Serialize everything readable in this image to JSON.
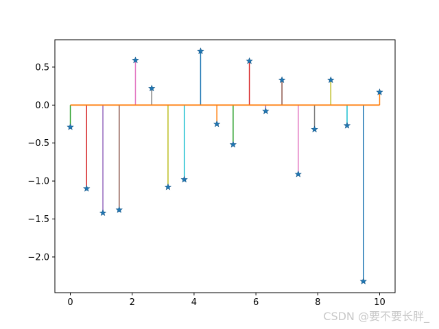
{
  "chart_data": {
    "type": "stem",
    "x": [
      0.0,
      0.526,
      1.053,
      1.579,
      2.105,
      2.632,
      3.158,
      3.684,
      4.211,
      4.737,
      5.263,
      5.789,
      6.316,
      6.842,
      7.368,
      7.895,
      8.421,
      8.947,
      9.474,
      10.0
    ],
    "y": [
      -0.29,
      -1.1,
      -1.42,
      -1.38,
      0.59,
      0.22,
      -1.08,
      -0.98,
      0.71,
      -0.25,
      -0.52,
      0.58,
      -0.08,
      0.33,
      -0.91,
      -0.32,
      0.33,
      -0.27,
      -2.32,
      0.17
    ],
    "baseline": 0,
    "marker": "star",
    "xlim": [
      -0.5,
      10.5
    ],
    "ylim": [
      -2.47,
      0.86
    ],
    "xticks": [
      0,
      2,
      4,
      6,
      8,
      10
    ],
    "yticks": [
      -2.0,
      -1.5,
      -1.0,
      -0.5,
      0.0,
      0.5
    ],
    "xtick_labels": [
      "0",
      "2",
      "4",
      "6",
      "8",
      "10"
    ],
    "ytick_labels": [
      "−2.0",
      "−1.5",
      "−1.0",
      "−0.5",
      "0.0",
      "0.5"
    ],
    "title": "",
    "xlabel": "",
    "ylabel": "",
    "grid": false,
    "colors": {
      "stem_cycle": [
        "#2ca02c",
        "#d62728",
        "#9467bd",
        "#8c564b",
        "#e377c2",
        "#7f7f7f",
        "#bcbd22",
        "#17becf",
        "#1f77b4",
        "#ff7f0e"
      ],
      "marker": "#1f77b4",
      "baseline": "#ff7f0e"
    }
  },
  "watermark": "CSDN @要不要长胖_"
}
